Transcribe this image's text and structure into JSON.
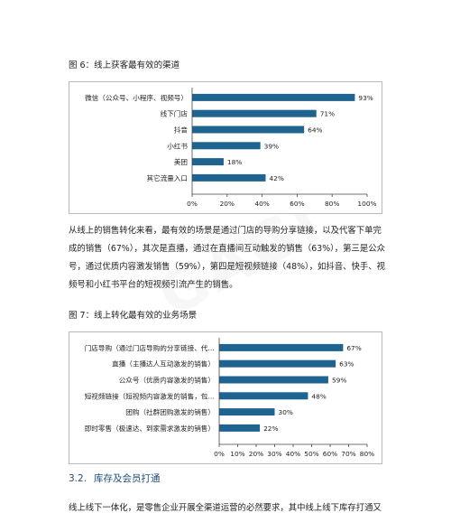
{
  "figure6": {
    "caption": "图 6：线上获客最有效的渠道",
    "chart_data": {
      "type": "bar",
      "orientation": "horizontal",
      "categories": [
        "微信（公众号、小程序、视频号）",
        "线下门店",
        "抖音",
        "小红书",
        "美团",
        "其它流量入口"
      ],
      "values": [
        93,
        71,
        64,
        39,
        18,
        42
      ],
      "value_labels": [
        "93%",
        "71%",
        "64%",
        "39%",
        "18%",
        "42%"
      ],
      "xlim": [
        0,
        100
      ],
      "x_ticks": [
        "0%",
        "20%",
        "40%",
        "60%",
        "80%",
        "100%"
      ],
      "bar_color": "#1f6391",
      "grid": false
    }
  },
  "paragraph": {
    "lines": [
      "从线上的销售转化来看，最有效的场景是通过门店的导购分享链接，以及代客下单完",
      "成的销售（67%），其次是直播，通过在直播间互动触发的销售（63%），第三是公众",
      "号，通过优质内容激发销售（59%），第四是短视频链接（48%），如抖音、快手、视",
      "频号和小红书平台的短视频引流产生的销售。"
    ]
  },
  "figure7": {
    "caption": "图 7：线上转化最有效的业务场景",
    "chart_data": {
      "type": "bar",
      "orientation": "horizontal",
      "categories": [
        "门店导购（通过门店导购的分享链接、代…",
        "直播（主播达人互动激发的销售）",
        "公众号（优质内容激发的销售）",
        "短视频链接（短视频内容激发的销售，包…",
        "团购（社群团购激发的销售）",
        "即时零售（极速达、到家需求激发的销售）"
      ],
      "values": [
        67,
        63,
        59,
        48,
        30,
        22
      ],
      "value_labels": [
        "67%",
        "63%",
        "59%",
        "48%",
        "30%",
        "22%"
      ],
      "xlim": [
        0,
        80
      ],
      "x_ticks": [
        "0%",
        "10%",
        "20%",
        "30%",
        "40%",
        "50%",
        "60%",
        "70%",
        "80%"
      ],
      "bar_color": "#1f6391",
      "grid": false
    }
  },
  "section": {
    "number": "3.2.",
    "title": "库存及会员打通"
  },
  "trailing_text": "线上线下一体化，是零售企业开展全渠道运营的必然要求，其中线上线下库存打通又",
  "watermark": "GAGI"
}
